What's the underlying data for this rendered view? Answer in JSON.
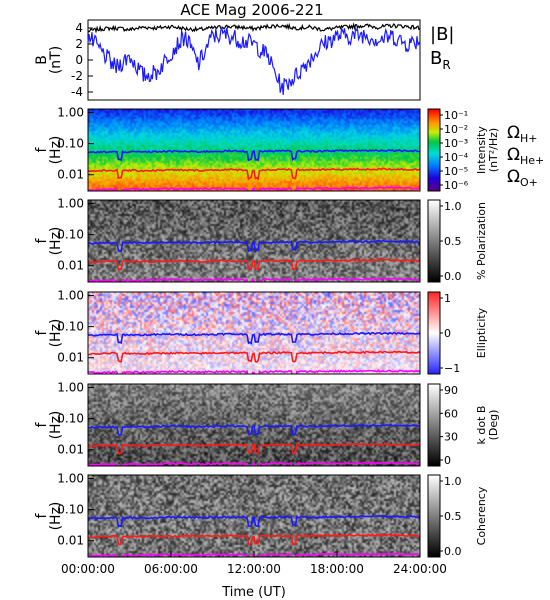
{
  "figure_title": "ACE Mag 2006-221",
  "x_axis": {
    "label": "Time (UT)",
    "ticks": [
      "00:00:00",
      "06:00:00",
      "12:00:00",
      "18:00:00",
      "24:00:00"
    ],
    "range_hours": [
      0,
      24
    ]
  },
  "field_panel": {
    "ylabel": "B",
    "yunit": "(nT)",
    "yticks": [
      "4",
      "2",
      "0",
      "-2",
      "-4"
    ],
    "legend": {
      "total": "|B|",
      "radial": "BR",
      "total_color": "#000000",
      "radial_color": "#1a1aff"
    }
  },
  "spectral_panels": [
    {
      "id": "intensity",
      "ylabel": "f",
      "yunit": "(Hz)",
      "yticks": [
        "1.00",
        "0.10",
        "0.01"
      ],
      "colorbar_title": "Intensity",
      "colorbar_unit": "(nT²/Hz)",
      "colorbar_ticks": [
        "10⁻¹",
        "10⁻²",
        "10⁻³",
        "10⁻⁴",
        "10⁻⁵",
        "10⁻⁶"
      ],
      "colormap": "rainbow"
    },
    {
      "id": "polarization",
      "ylabel": "f",
      "yunit": "(Hz)",
      "yticks": [
        "1.00",
        "0.10",
        "0.01"
      ],
      "colorbar_title": "% Polarization",
      "colorbar_unit": "",
      "colorbar_ticks": [
        "1.0",
        "0.5",
        "0.0"
      ],
      "colormap": "gray"
    },
    {
      "id": "ellipticity",
      "ylabel": "f",
      "yunit": "(Hz)",
      "yticks": [
        "1.00",
        "0.10",
        "0.01"
      ],
      "colorbar_title": "Ellipticity",
      "colorbar_unit": "",
      "colorbar_ticks": [
        "1",
        "0",
        "−1"
      ],
      "colormap": "bwr"
    },
    {
      "id": "kdotb",
      "ylabel": "f",
      "yunit": "(Hz)",
      "yticks": [
        "1.00",
        "0.10",
        "0.01"
      ],
      "colorbar_title": "k dot B",
      "colorbar_unit": "(Deg)",
      "colorbar_ticks": [
        "90",
        "60",
        "30",
        "0"
      ],
      "colormap": "gray"
    },
    {
      "id": "coherency",
      "ylabel": "f",
      "yunit": "(Hz)",
      "yticks": [
        "1.00",
        "0.10",
        "0.01"
      ],
      "colorbar_title": "Coherency",
      "colorbar_unit": "",
      "colorbar_ticks": [
        "1.0",
        "0.5",
        "0.0"
      ],
      "colormap": "gray"
    }
  ],
  "gyro_legend": [
    {
      "label": "ΩH+",
      "color": "#1a1aff"
    },
    {
      "label": "ΩHe+",
      "color": "#ff1a1a"
    },
    {
      "label": "ΩO+",
      "color": "#ff00ff"
    }
  ],
  "chart_data": {
    "type": "line",
    "title": "ACE Mag 2006-221",
    "xlabel": "Time (UT)",
    "xlim_hours": [
      0,
      24
    ],
    "field": {
      "ylim": [
        -5,
        5
      ],
      "x_hours": [
        0,
        1,
        2,
        3,
        4,
        5,
        6,
        7,
        8,
        9,
        10,
        11,
        12,
        13,
        14,
        15,
        16,
        17,
        18,
        19,
        20,
        21,
        22,
        23,
        24
      ],
      "series": [
        {
          "name": "|B|",
          "values": [
            3.6,
            3.9,
            4.0,
            3.8,
            4.1,
            4.0,
            4.2,
            3.9,
            3.8,
            4.0,
            4.2,
            4.1,
            3.9,
            4.2,
            4.3,
            4.0,
            4.1,
            3.8,
            4.0,
            4.2,
            4.3,
            4.1,
            4.3,
            4.2,
            4.0
          ]
        },
        {
          "name": "BR",
          "values": [
            3.0,
            1.0,
            -1.0,
            0.5,
            -2.0,
            -1.5,
            1.0,
            3.0,
            -0.5,
            3.0,
            3.2,
            2.5,
            2.0,
            0.5,
            -3.5,
            -2.0,
            0.0,
            2.0,
            3.0,
            3.0,
            3.2,
            2.5,
            3.0,
            2.0,
            2.5
          ]
        }
      ]
    },
    "gyrofrequency_hz": {
      "x_hours": [
        0,
        2,
        4,
        6,
        8,
        10,
        12,
        14,
        16,
        18,
        20,
        22,
        24
      ],
      "series": [
        {
          "name": "ΩH+",
          "values": [
            0.052,
            0.055,
            0.054,
            0.057,
            0.055,
            0.058,
            0.056,
            0.058,
            0.057,
            0.059,
            0.06,
            0.061,
            0.058
          ]
        },
        {
          "name": "ΩHe+",
          "values": [
            0.013,
            0.014,
            0.0135,
            0.0142,
            0.0138,
            0.0145,
            0.014,
            0.0145,
            0.0143,
            0.0148,
            0.015,
            0.0152,
            0.0145
          ]
        },
        {
          "name": "ΩO+",
          "values": [
            0.0033,
            0.0034,
            0.0034,
            0.0036,
            0.0035,
            0.0036,
            0.0035,
            0.0036,
            0.0036,
            0.0037,
            0.0037,
            0.0038,
            0.0036
          ]
        }
      ],
      "dips_hours": [
        2.3,
        11.7,
        12.2,
        14.9
      ]
    },
    "frequency_ylim_hz": [
      0.003,
      1.3
    ]
  }
}
